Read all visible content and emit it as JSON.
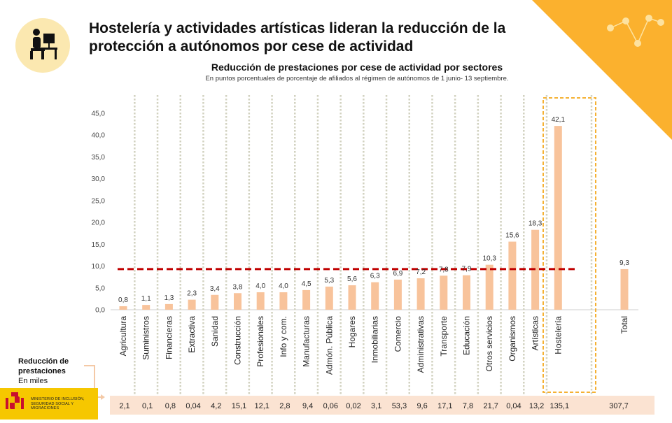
{
  "header": {
    "title": "Hostelería y actividades artísticas lideran la reducción de la protección a autónomos por cese de actividad"
  },
  "chart_data": {
    "type": "bar",
    "title": "Reducción de prestaciones por cese de actividad por sectores",
    "subtitle": "En puntos porcentuales de porcentaje de afiliados al régimen de autónomos de 1 junio- 13 septiembre.",
    "categories": [
      "Agricultura",
      "Suministros",
      "Financieras",
      "Extractiva",
      "Sanidad",
      "Construcción",
      "Profesionales",
      "Info y com.",
      "Manufacturas",
      "Admón. Pública",
      "Hogares",
      "Inmobiliarias",
      "Comercio",
      "Administrativas",
      "Transporte",
      "Educación",
      "Otros servicios",
      "Organismos",
      "Artísticas",
      "Hostelería",
      "Total"
    ],
    "values": [
      0.8,
      1.1,
      1.3,
      2.3,
      3.4,
      3.8,
      4.0,
      4.0,
      4.5,
      5.3,
      5.6,
      6.3,
      6.9,
      7.2,
      7.8,
      7.9,
      10.3,
      15.6,
      18.3,
      42.1,
      9.3
    ],
    "value_labels": [
      "0,8",
      "1,1",
      "1,3",
      "2,3",
      "3,4",
      "3,8",
      "4,0",
      "4,0",
      "4,5",
      "5,3",
      "5,6",
      "6,3",
      "6,9",
      "7,2",
      "7,8",
      "7,9",
      "10,3",
      "15,6",
      "18,3",
      "42,1",
      "9,3"
    ],
    "y_ticks": [
      "0,0",
      "5,0",
      "10,0",
      "15,0",
      "20,0",
      "25,0",
      "30,0",
      "35,0",
      "40,0",
      "45,0"
    ],
    "ylim": [
      0,
      45
    ],
    "reference_line": 9.3,
    "highlighted": [
      "Artísticas",
      "Hostelería"
    ],
    "bar_color": "#f8c39b",
    "reference_color": "#c00000",
    "highlight_color": "#f5b133",
    "table": {
      "label_bold": "Reducción de prestaciones",
      "label_unit": "En miles",
      "values": [
        "2,1",
        "0,1",
        "0,8",
        "0,04",
        "4,2",
        "15,1",
        "12,1",
        "2,8",
        "9,4",
        "0,06",
        "0,02",
        "3,1",
        "53,3",
        "9,6",
        "17,1",
        "7,8",
        "21,7",
        "0,04",
        "13,2",
        "135,1",
        "307,7"
      ]
    }
  },
  "logo": {
    "ministry_text": "MINISTERIO DE INCLUSIÓN, SEGURIDAD SOCIAL Y MIGRACIONES"
  },
  "colors": {
    "accent": "#fbb12e",
    "icon_bg": "#fbe8b0",
    "band": "#fbe3d2"
  }
}
